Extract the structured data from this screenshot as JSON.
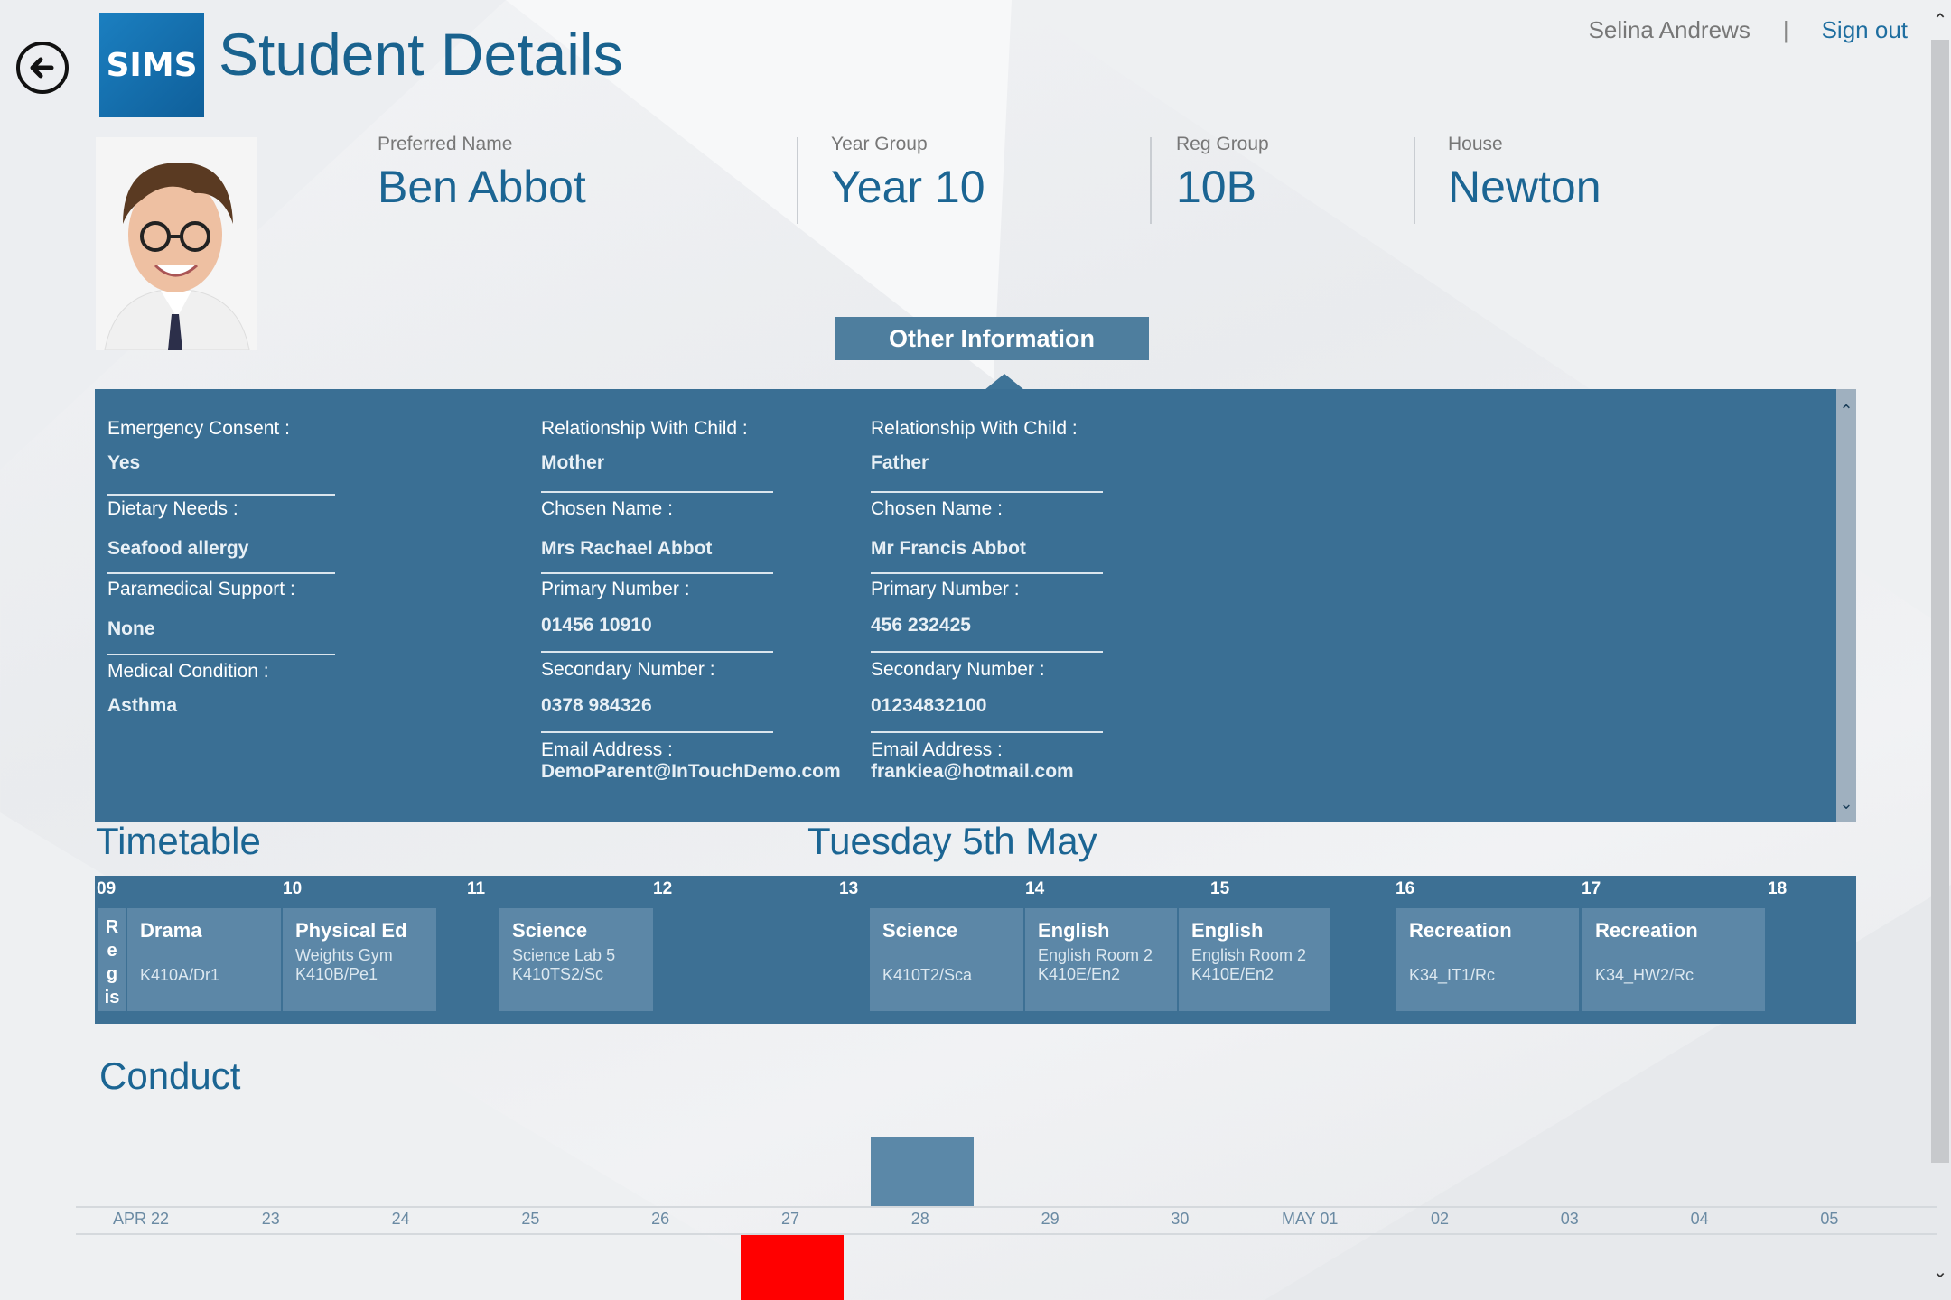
{
  "header": {
    "logo_text": "SIMS",
    "title": "Student Details",
    "user_name": "Selina Andrews",
    "separator": "|",
    "sign_out": "Sign out"
  },
  "student": {
    "preferred_name_label": "Preferred Name",
    "preferred_name": "Ben Abbot",
    "year_group_label": "Year Group",
    "year_group": "Year 10",
    "reg_group_label": "Reg Group",
    "reg_group": "10B",
    "house_label": "House",
    "house": "Newton"
  },
  "other_info": {
    "tab_label": "Other Information",
    "student_fields": [
      {
        "label": "Emergency Consent :",
        "value": "Yes"
      },
      {
        "label": "Dietary Needs :",
        "value": "Seafood allergy"
      },
      {
        "label": "Paramedical Support :",
        "value": "None"
      },
      {
        "label": "Medical Condition :",
        "value": "Asthma"
      }
    ],
    "contacts": [
      {
        "relationship_label": "Relationship With Child :",
        "relationship": "Mother",
        "chosen_name_label": "Chosen Name :",
        "chosen_name": "Mrs Rachael Abbot",
        "primary_label": "Primary Number :",
        "primary": "01456 10910",
        "secondary_label": "Secondary Number :",
        "secondary": "0378 984326",
        "email_label": "Email Address :",
        "email": "DemoParent@InTouchDemo.com"
      },
      {
        "relationship_label": "Relationship With Child :",
        "relationship": "Father",
        "chosen_name_label": "Chosen Name :",
        "chosen_name": "Mr Francis Abbot",
        "primary_label": "Primary Number :",
        "primary": "456 232425",
        "secondary_label": "Secondary Number :",
        "secondary": "01234832100",
        "email_label": "Email Address :",
        "email": "frankiea@hotmail.com"
      }
    ]
  },
  "timetable": {
    "title": "Timetable",
    "date": "Tuesday 5th May",
    "hours": [
      "09",
      "10",
      "11",
      "12",
      "13",
      "14",
      "15",
      "16",
      "17",
      "18"
    ],
    "registration": [
      "R",
      "e",
      "g",
      "is"
    ],
    "lessons": [
      {
        "subject": "Drama",
        "room": "",
        "class": "K410A/Dr1"
      },
      {
        "subject": "Physical Ed",
        "room": "Weights Gym",
        "class": "K410B/Pe1"
      },
      {
        "subject": "Science",
        "room": "Science Lab 5",
        "class": "K410TS2/Sc"
      },
      {
        "subject": "Science",
        "room": "",
        "class": "K410T2/Sca"
      },
      {
        "subject": "English",
        "room": "English Room 2",
        "class": "K410E/En2"
      },
      {
        "subject": "English",
        "room": "English Room 2",
        "class": "K410E/En2"
      },
      {
        "subject": "Recreation",
        "room": "",
        "class": "K34_IT1/Rc"
      },
      {
        "subject": "Recreation",
        "room": "",
        "class": "K34_HW2/Rc"
      }
    ]
  },
  "conduct": {
    "title": "Conduct",
    "colors": {
      "positive": "#5b88a8",
      "negative": "#ff0000"
    },
    "chart_data": {
      "type": "bar",
      "categories": [
        "APR  22",
        "23",
        "24",
        "25",
        "26",
        "27",
        "28",
        "29",
        "30",
        "MAY 01",
        "02",
        "03",
        "04",
        "05"
      ],
      "series": [
        {
          "values": [
            0,
            0,
            0,
            0,
            0,
            0,
            1,
            0,
            0,
            0,
            0,
            0,
            0,
            0
          ]
        },
        {
          "values": [
            0,
            0,
            0,
            0,
            0,
            -1,
            0,
            0,
            0,
            0,
            0,
            0,
            0,
            0
          ]
        }
      ]
    }
  },
  "icons": {
    "back": "back-arrow-icon",
    "scroll_up": "chevron-up-icon",
    "scroll_down": "chevron-down-icon"
  }
}
